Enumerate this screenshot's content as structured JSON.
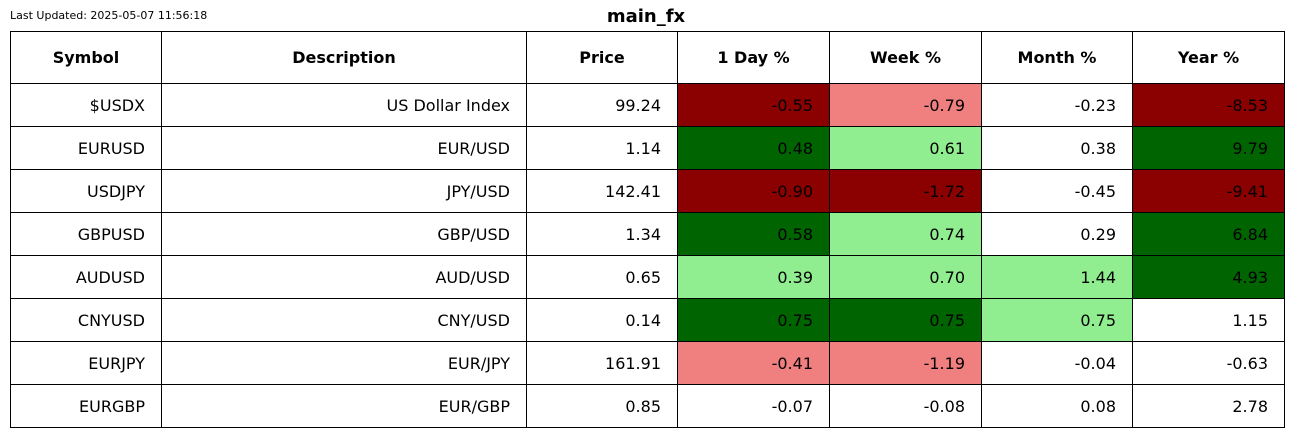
{
  "last_updated": "Last Updated: 2025-05-07 11:56:18",
  "title": "main_fx",
  "colors": {
    "strong_negative": "#8b0000",
    "negative": "#f08080",
    "strong_positive": "#006400",
    "positive": "#90ee90",
    "neutral": "#ffffff",
    "border": "#000000"
  },
  "chart_data": {
    "type": "table",
    "title": "main_fx",
    "columns": [
      "Symbol",
      "Description",
      "Price",
      "1 Day %",
      "Week %",
      "Month %",
      "Year %"
    ],
    "rows": [
      {
        "cells": [
          "$USDX",
          "US Dollar Index",
          "99.24",
          "-0.55",
          "-0.79",
          "-0.23",
          "-8.53"
        ],
        "fills": [
          "neutral",
          "neutral",
          "neutral",
          "strong_negative",
          "negative",
          "neutral",
          "strong_negative"
        ]
      },
      {
        "cells": [
          "EURUSD",
          "EUR/USD",
          "1.14",
          "0.48",
          "0.61",
          "0.38",
          "9.79"
        ],
        "fills": [
          "neutral",
          "neutral",
          "neutral",
          "strong_positive",
          "positive",
          "neutral",
          "strong_positive"
        ]
      },
      {
        "cells": [
          "USDJPY",
          "JPY/USD",
          "142.41",
          "-0.90",
          "-1.72",
          "-0.45",
          "-9.41"
        ],
        "fills": [
          "neutral",
          "neutral",
          "neutral",
          "strong_negative",
          "strong_negative",
          "neutral",
          "strong_negative"
        ]
      },
      {
        "cells": [
          "GBPUSD",
          "GBP/USD",
          "1.34",
          "0.58",
          "0.74",
          "0.29",
          "6.84"
        ],
        "fills": [
          "neutral",
          "neutral",
          "neutral",
          "strong_positive",
          "positive",
          "neutral",
          "strong_positive"
        ]
      },
      {
        "cells": [
          "AUDUSD",
          "AUD/USD",
          "0.65",
          "0.39",
          "0.70",
          "1.44",
          "4.93"
        ],
        "fills": [
          "neutral",
          "neutral",
          "neutral",
          "positive",
          "positive",
          "positive",
          "strong_positive"
        ]
      },
      {
        "cells": [
          "CNYUSD",
          "CNY/USD",
          "0.14",
          "0.75",
          "0.75",
          "0.75",
          "1.15"
        ],
        "fills": [
          "neutral",
          "neutral",
          "neutral",
          "strong_positive",
          "strong_positive",
          "positive",
          "neutral"
        ]
      },
      {
        "cells": [
          "EURJPY",
          "EUR/JPY",
          "161.91",
          "-0.41",
          "-1.19",
          "-0.04",
          "-0.63"
        ],
        "fills": [
          "neutral",
          "neutral",
          "neutral",
          "negative",
          "negative",
          "neutral",
          "neutral"
        ]
      },
      {
        "cells": [
          "EURGBP",
          "EUR/GBP",
          "0.85",
          "-0.07",
          "-0.08",
          "0.08",
          "2.78"
        ],
        "fills": [
          "neutral",
          "neutral",
          "neutral",
          "neutral",
          "neutral",
          "neutral",
          "neutral"
        ]
      }
    ]
  }
}
